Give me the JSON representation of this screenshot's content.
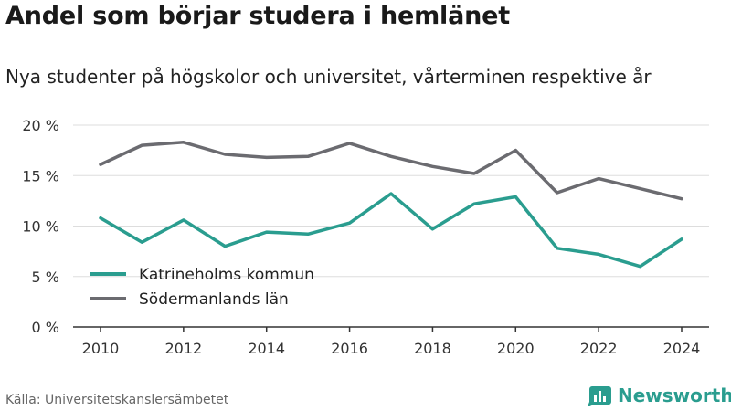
{
  "title": "Andel som börjar studera i hemlänet",
  "subtitle": "Nya studenter på högskolor och universitet, vårterminen respektive år",
  "source": "Källa: Universitetskanslersämbetet",
  "brand": "Newsworthy",
  "colors": {
    "series1": "#2a9d8f",
    "series2": "#6b6b70",
    "grid": "#dddddd",
    "axis": "#333333"
  },
  "chart_data": {
    "type": "line",
    "title": "",
    "xlabel": "",
    "ylabel": "",
    "x": [
      2010,
      2011,
      2012,
      2013,
      2014,
      2015,
      2016,
      2017,
      2018,
      2019,
      2020,
      2021,
      2022,
      2023,
      2024
    ],
    "xticks": [
      "2010",
      "2012",
      "2014",
      "2016",
      "2018",
      "2020",
      "2022",
      "2024"
    ],
    "yticks": [
      "0 %",
      "5 %",
      "10 %",
      "15 %",
      "20 %"
    ],
    "ylim": [
      0,
      20
    ],
    "grid": true,
    "legend_position": "bottom-left",
    "series": [
      {
        "name": "Katrineholms kommun",
        "values": [
          10.8,
          8.4,
          10.6,
          8.0,
          9.4,
          9.2,
          10.3,
          13.2,
          9.7,
          12.2,
          12.9,
          7.8,
          7.2,
          6.0,
          8.7
        ]
      },
      {
        "name": "Södermanlands län",
        "values": [
          16.1,
          18.0,
          18.3,
          17.1,
          16.8,
          16.9,
          18.2,
          16.9,
          15.9,
          15.2,
          17.5,
          13.3,
          14.7,
          13.7,
          12.7
        ]
      }
    ]
  }
}
